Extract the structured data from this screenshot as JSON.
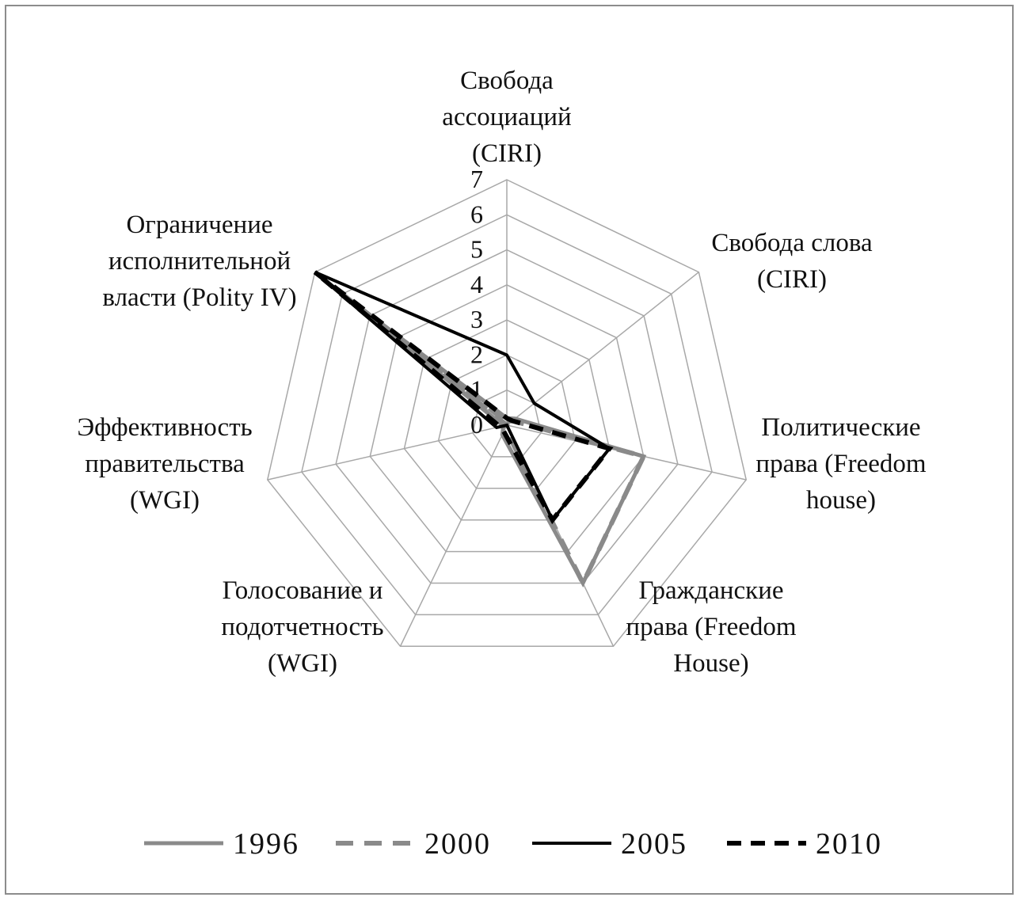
{
  "chart_data": {
    "type": "radar",
    "title": "",
    "r_range": [
      0,
      7
    ],
    "ticks": [
      "0",
      "1",
      "2",
      "3",
      "4",
      "5",
      "6",
      "7"
    ],
    "grid": true,
    "legend_position": "bottom",
    "axes": [
      {
        "label_lines": [
          "Свобода",
          "ассоциаций",
          "(CIRI)"
        ]
      },
      {
        "label_lines": [
          "Свобода слова",
          "(CIRI)"
        ]
      },
      {
        "label_lines": [
          "Политические",
          "права (Freedom",
          "house)"
        ]
      },
      {
        "label_lines": [
          "Гражданские",
          "права (Freedom",
          "House)"
        ]
      },
      {
        "label_lines": [
          "Голосование и",
          "подотчетность",
          "(WGI)"
        ]
      },
      {
        "label_lines": [
          "Эффективность",
          "правительства",
          "(WGI)"
        ]
      },
      {
        "label_lines": [
          "Ограничение",
          "исполнительной",
          "власти (Polity IV)"
        ]
      }
    ],
    "series": [
      {
        "name": "1996",
        "values": [
          0.2,
          0.3,
          4.0,
          5.0,
          0.3,
          0.1,
          6.0
        ],
        "color": "#8a8a8a",
        "style": "solid"
      },
      {
        "name": "2000",
        "values": [
          0.1,
          0.2,
          4.0,
          5.0,
          0.1,
          0.0,
          6.0
        ],
        "color": "#8a8a8a",
        "style": "dashed"
      },
      {
        "name": "2005",
        "values": [
          2.0,
          1.0,
          3.0,
          3.0,
          0.0,
          0.3,
          7.0
        ],
        "color": "#000000",
        "style": "solid"
      },
      {
        "name": "2010",
        "values": [
          0.2,
          0.2,
          3.0,
          3.0,
          0.2,
          0.2,
          7.0
        ],
        "color": "#000000",
        "style": "dashed"
      }
    ]
  }
}
